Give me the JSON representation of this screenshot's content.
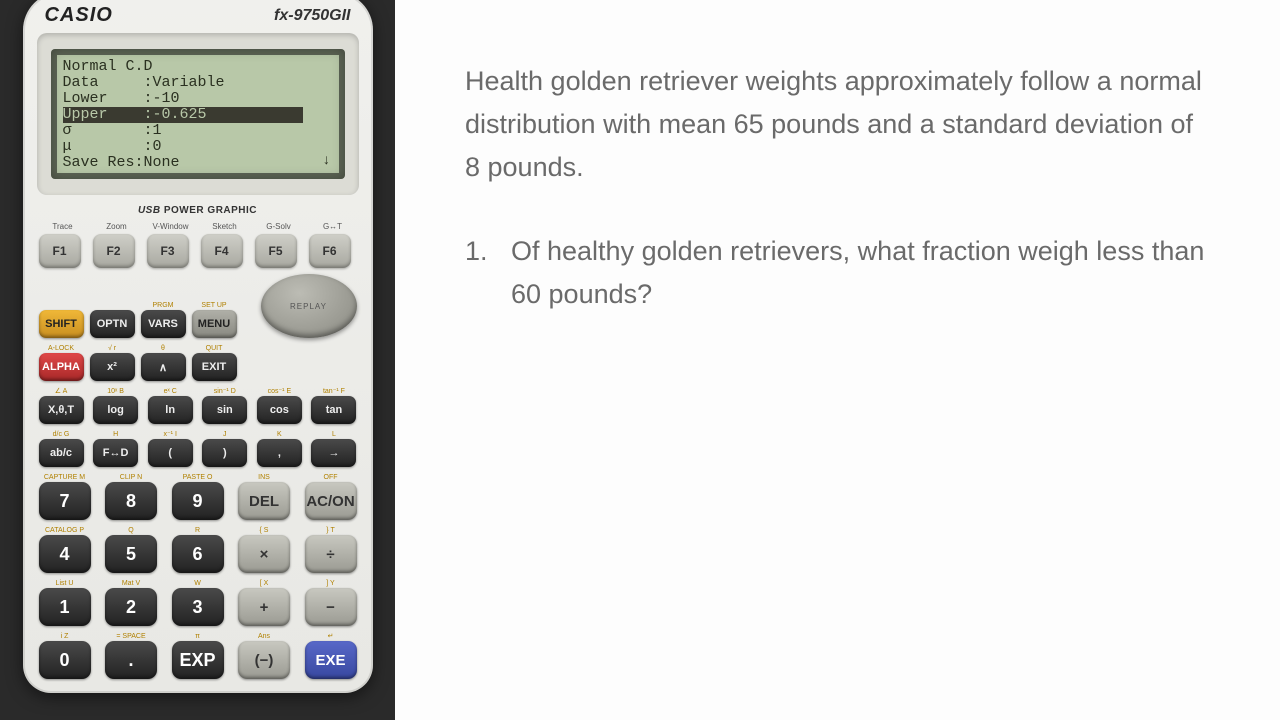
{
  "calculator": {
    "brand": "CASIO",
    "model": "fx-9750GII",
    "usb_label_em": "USB",
    "usb_label_rest": " POWER GRAPHIC",
    "screen": {
      "lines": [
        "Normal C.D",
        "Data     :Variable",
        "Lower    :-10",
        "Upper    :-0.625",
        "σ        :1",
        "μ        :0",
        "Save Res:None"
      ],
      "highlight_index": 3,
      "arrow": "↓"
    },
    "fkeys": [
      {
        "top": "Trace",
        "label": "F1"
      },
      {
        "top": "Zoom",
        "label": "F2"
      },
      {
        "top": "V-Window",
        "label": "F3"
      },
      {
        "top": "Sketch",
        "label": "F4"
      },
      {
        "top": "G-Solv",
        "label": "F5"
      },
      {
        "top": "G↔T",
        "label": "F6"
      }
    ],
    "row_ctrl": {
      "shift": "SHIFT",
      "optn": "OPTN",
      "vars": "VARS",
      "menu": "MENU",
      "replay": "REPLAY",
      "vars_top": "PRGM",
      "menu_top": "SET UP"
    },
    "row_ctrl2": {
      "alpha": "ALPHA",
      "x2": "x²",
      "pow": "∧",
      "exit": "EXIT",
      "alpha_top": "A-LOCK",
      "x2_top": "√   r",
      "pow_top": "θ",
      "exit_top": "QUIT"
    },
    "row_fn1": [
      {
        "top": "∠   A",
        "label": "X,θ,T"
      },
      {
        "top": "10ˣ  B",
        "label": "log"
      },
      {
        "top": "eˣ   C",
        "label": "ln"
      },
      {
        "top": "sin⁻¹ D",
        "label": "sin"
      },
      {
        "top": "cos⁻¹ E",
        "label": "cos"
      },
      {
        "top": "tan⁻¹ F",
        "label": "tan"
      }
    ],
    "row_fn2": [
      {
        "top": "d/c  G",
        "label": "ab/c"
      },
      {
        "top": "    H",
        "label": "F↔D"
      },
      {
        "top": "x⁻¹  I",
        "label": "("
      },
      {
        "top": "    J",
        "label": ")"
      },
      {
        "top": "    K",
        "label": ","
      },
      {
        "top": "    L",
        "label": "→"
      }
    ],
    "num_rows": [
      [
        {
          "top": "CAPTURE M",
          "label": "7",
          "cls": "num"
        },
        {
          "top": "CLIP   N",
          "label": "8",
          "cls": "num"
        },
        {
          "top": "PASTE  O",
          "label": "9",
          "cls": "num"
        },
        {
          "top": "INS",
          "label": "DEL",
          "cls": "op"
        },
        {
          "top": "OFF",
          "label": "AC/ON",
          "cls": "op"
        }
      ],
      [
        {
          "top": "CATALOG P",
          "label": "4",
          "cls": "num"
        },
        {
          "top": "     Q",
          "label": "5",
          "cls": "num"
        },
        {
          "top": "     R",
          "label": "6",
          "cls": "num"
        },
        {
          "top": "{    S",
          "label": "×",
          "cls": "op"
        },
        {
          "top": "}    T",
          "label": "÷",
          "cls": "op"
        }
      ],
      [
        {
          "top": "List  U",
          "label": "1",
          "cls": "num"
        },
        {
          "top": "Mat  V",
          "label": "2",
          "cls": "num"
        },
        {
          "top": "    W",
          "label": "3",
          "cls": "num"
        },
        {
          "top": "[   X",
          "label": "+",
          "cls": "op"
        },
        {
          "top": "]   Y",
          "label": "−",
          "cls": "op"
        }
      ],
      [
        {
          "top": "i    Z",
          "label": "0",
          "cls": "num"
        },
        {
          "top": "=  SPACE",
          "label": ".",
          "cls": "num"
        },
        {
          "top": "π",
          "label": "EXP",
          "cls": "num"
        },
        {
          "top": "Ans",
          "label": "(−)",
          "cls": "op"
        },
        {
          "top": "↵",
          "label": "EXE",
          "cls": "op exe"
        }
      ]
    ]
  },
  "text": {
    "problem": "Health golden retriever weights approximately follow a normal distribution with mean 65 pounds and a standard deviation of 8 pounds.",
    "q_num": "1.",
    "q_text": "Of healthy golden retrievers, what fraction weigh less than 60 pounds?"
  },
  "colors": {
    "page_bg": "#3a3a3a",
    "calc_bg": "#e8e8e4",
    "screen_bg": "#b8c8a8",
    "text_panel_bg": "#fdfdfd",
    "text_color": "#6a6a6a"
  }
}
